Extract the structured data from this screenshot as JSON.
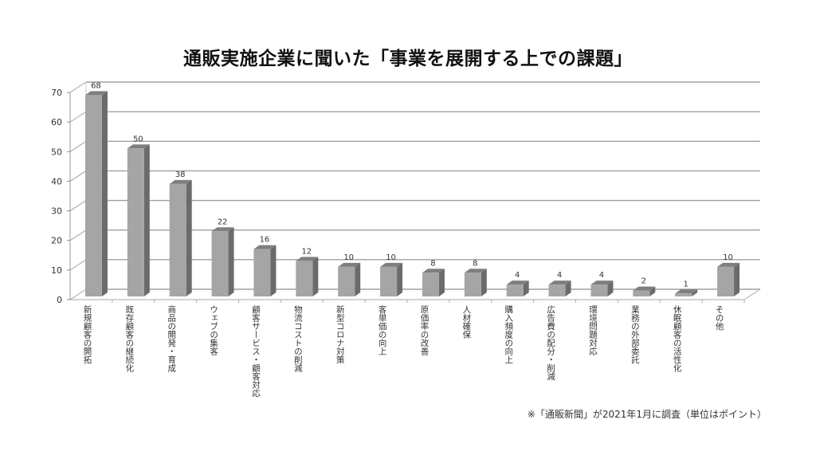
{
  "chart_data": {
    "type": "bar",
    "title": "通販実施企業に聞いた「事業を展開する上での課題」",
    "categories": [
      "新規顧客の開拓",
      "既存顧客の継続化",
      "商品の開発・育成",
      "ウェブの集客",
      "顧客サービス・顧客対応",
      "物流コストの削減",
      "新型コロナ対策",
      "客単価の向上",
      "原価率の改善",
      "人材確保",
      "購入頻度の向上",
      "広告費の配分・削減",
      "環境問題対応",
      "業務の外部委託",
      "休眠顧客の活性化",
      "その他"
    ],
    "values": [
      68,
      50,
      38,
      22,
      16,
      12,
      10,
      10,
      8,
      8,
      4,
      4,
      4,
      2,
      1,
      10
    ],
    "xlabel": "",
    "ylabel": "",
    "ylim": [
      0,
      70
    ],
    "yticks": [
      0,
      10,
      20,
      30,
      40,
      50,
      60,
      70
    ],
    "grid": true,
    "legend": null,
    "style": "3d-column",
    "data_labels": true,
    "note": "※「通販新聞」が2021年1月に調査（単位はポイント）"
  },
  "colors": {
    "bar_front": "#a5a5a5",
    "bar_side": "#6b6b6b",
    "bar_top": "#7f7f7f",
    "grid": "#a0a0a0"
  }
}
